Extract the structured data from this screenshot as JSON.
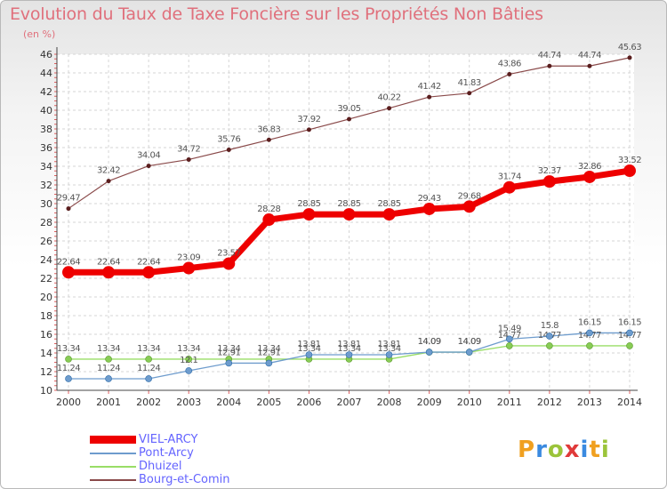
{
  "title": "Evolution du Taux de Taxe Foncière sur les Propriétés Non Bâties",
  "unit_label": "(en %)",
  "brand": {
    "letters": [
      "P",
      "r",
      "o",
      "x",
      "i",
      "t",
      "i"
    ],
    "colors": [
      "#f0a020",
      "#3a8ae0",
      "#9bc43a",
      "#e03a3a",
      "#3a8ae0",
      "#f0a020",
      "#9bc43a"
    ]
  },
  "chart_data": {
    "type": "line",
    "title": "Evolution du Taux de Taxe Foncière sur les Propriétés Non Bâties",
    "ylabel": "(en %)",
    "xlabel": "",
    "ylim": [
      10,
      46
    ],
    "y_ticks": [
      10,
      12,
      14,
      16,
      18,
      20,
      22,
      24,
      26,
      28,
      30,
      32,
      34,
      36,
      38,
      40,
      42,
      44,
      46
    ],
    "categories": [
      "2000",
      "2001",
      "2002",
      "2003",
      "2004",
      "2005",
      "2006",
      "2007",
      "2008",
      "2009",
      "2010",
      "2011",
      "2012",
      "2013",
      "2014"
    ],
    "grid": true,
    "series": [
      {
        "name": "VIEL-ARCY",
        "color": "#ee0000",
        "marker_color": "#ee0000",
        "values": [
          22.64,
          22.64,
          22.64,
          23.09,
          23.57,
          28.28,
          28.85,
          28.85,
          28.85,
          29.43,
          29.68,
          31.74,
          32.37,
          32.86,
          33.52
        ],
        "labels": [
          "22.64",
          "22.64",
          "22.64",
          "23.09",
          "23.57",
          "28.28",
          "28.85",
          "28.85",
          "28.85",
          "29.43",
          "29.68",
          "31.74",
          "32.37",
          "32.86",
          "33.52"
        ]
      },
      {
        "name": "Pont-Arcy",
        "color": "#6e9ccd",
        "marker_color": "#6e9ccd",
        "values": [
          11.24,
          11.24,
          11.24,
          12.1,
          12.91,
          12.91,
          13.81,
          13.81,
          13.81,
          14.09,
          14.09,
          15.49,
          15.8,
          16.15,
          16.15
        ],
        "labels": [
          "11.24",
          "11.24",
          "11.24",
          "12.1",
          "12.91",
          "12.91",
          "13.81",
          "13.81",
          "13.81",
          "14.09",
          "14.09",
          "15.49",
          "15.8",
          "16.15",
          "16.15"
        ]
      },
      {
        "name": "Dhuizel",
        "color": "#99dd66",
        "marker_color": "#88cc55",
        "values": [
          13.34,
          13.34,
          13.34,
          13.34,
          13.34,
          13.34,
          13.34,
          13.34,
          13.34,
          14.09,
          14.09,
          14.77,
          14.77,
          14.77,
          14.77
        ],
        "labels": [
          "13.34",
          "13.34",
          "13.34",
          "13.34",
          "13.34",
          "13.34",
          "13.34",
          "13.34",
          "13.34",
          "14.09",
          "14.09",
          "14.77",
          "14.77",
          "14.77",
          "14.77"
        ]
      },
      {
        "name": "Bourg-et-Comin",
        "color": "#8a4a4a",
        "marker_color": "#5a1e1e",
        "values": [
          29.47,
          32.42,
          34.04,
          34.72,
          35.76,
          36.83,
          37.92,
          39.05,
          40.22,
          41.42,
          41.83,
          43.86,
          44.74,
          44.74,
          45.63
        ],
        "labels": [
          "29.47",
          "32.42",
          "34.04",
          "34.72",
          "35.76",
          "36.83",
          "37.92",
          "39.05",
          "40.22",
          "41.42",
          "41.83",
          "43.86",
          "44.74",
          "44.74",
          "45.63"
        ]
      }
    ],
    "legend_position": "bottom-left"
  }
}
